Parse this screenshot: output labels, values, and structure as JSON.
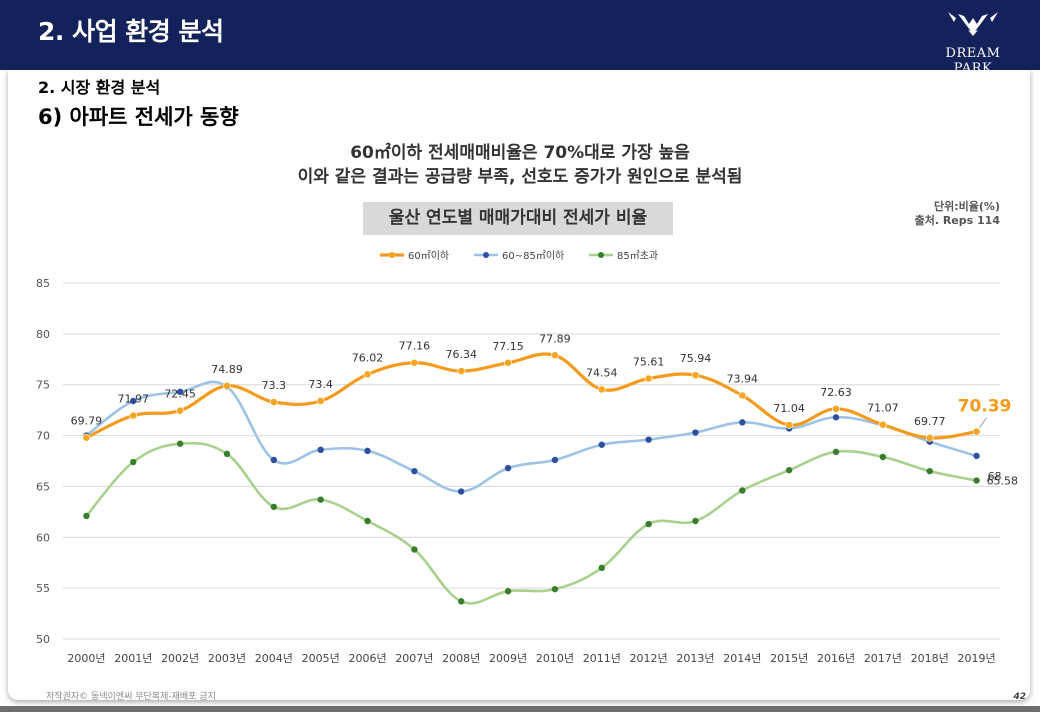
{
  "header": {
    "title": "2. 사업 환경 분석",
    "logo_text": "DREAM PARK"
  },
  "section": {
    "subtitle": "2. 시장 환경 분석",
    "title": "6) 아파트 전세가 동향"
  },
  "headline": {
    "line1": "60㎡이하 전세매매비율은 70%대로 가장 높음",
    "line2": "이와 같은 결과는 공급량 부족, 선호도 증가가 원인으로 분석됨"
  },
  "unit": {
    "line1": "단위:비율(%)",
    "line2": "출처. Reps 114"
  },
  "footer": {
    "copyright": "저작권자© 동넥이엔씨 무단복제-재배포 금지",
    "page": "42"
  },
  "colors": {
    "header_bg": "#13225a",
    "series1": "#f59a1b",
    "series2": "#9dc3e6",
    "series3": "#a9d18e"
  },
  "chart_data": {
    "type": "line",
    "title": "울산 연도별 매매가대비 전세가 비율",
    "categories": [
      "2000년",
      "2001년",
      "2002년",
      "2003년",
      "2004년",
      "2005년",
      "2006년",
      "2007년",
      "2008년",
      "2009년",
      "2010년",
      "2011년",
      "2012년",
      "2013년",
      "2014년",
      "2015년",
      "2016년",
      "2017년",
      "2018년",
      "2019년"
    ],
    "ylim": [
      50,
      85
    ],
    "yticks": [
      50,
      55,
      60,
      65,
      70,
      75,
      80,
      85
    ],
    "grid": true,
    "legend": "top",
    "series": [
      {
        "name": "60㎡이하",
        "values": [
          69.79,
          71.97,
          72.45,
          74.89,
          73.3,
          73.4,
          76.02,
          77.16,
          76.34,
          77.15,
          77.89,
          74.54,
          75.61,
          75.94,
          73.94,
          71.04,
          72.63,
          71.07,
          69.77,
          70.39
        ],
        "labels": [
          "69.79",
          "71.97",
          "72.45",
          "74.89",
          "73.3",
          "73.4",
          "76.02",
          "77.16",
          "76.34",
          "77.15",
          "77.89",
          "74.54",
          "75.61",
          "75.94",
          "73.94",
          "71.04",
          "72.63",
          "71.07",
          "69.77",
          "70.39"
        ]
      },
      {
        "name": "60~85㎡이하",
        "values": [
          70.0,
          73.4,
          74.3,
          74.8,
          67.6,
          68.6,
          68.5,
          66.5,
          64.5,
          66.8,
          67.6,
          69.1,
          69.6,
          70.3,
          71.3,
          70.7,
          71.8,
          71.0,
          69.4,
          68.0
        ],
        "labels": [
          "",
          "",
          "",
          "",
          "",
          "",
          "",
          "",
          "",
          "",
          "",
          "",
          "",
          "",
          "",
          "",
          "",
          "",
          "",
          "68"
        ]
      },
      {
        "name": "85㎡초과",
        "values": [
          62.1,
          67.4,
          69.2,
          68.2,
          63.0,
          63.7,
          61.6,
          58.8,
          53.7,
          54.7,
          54.9,
          57.0,
          61.3,
          61.6,
          64.6,
          66.6,
          68.4,
          67.9,
          66.5,
          65.58
        ],
        "labels": [
          "",
          "",
          "",
          "",
          "",
          "",
          "",
          "",
          "",
          "",
          "",
          "",
          "",
          "",
          "",
          "",
          "",
          "",
          "",
          "65.58"
        ]
      }
    ]
  }
}
